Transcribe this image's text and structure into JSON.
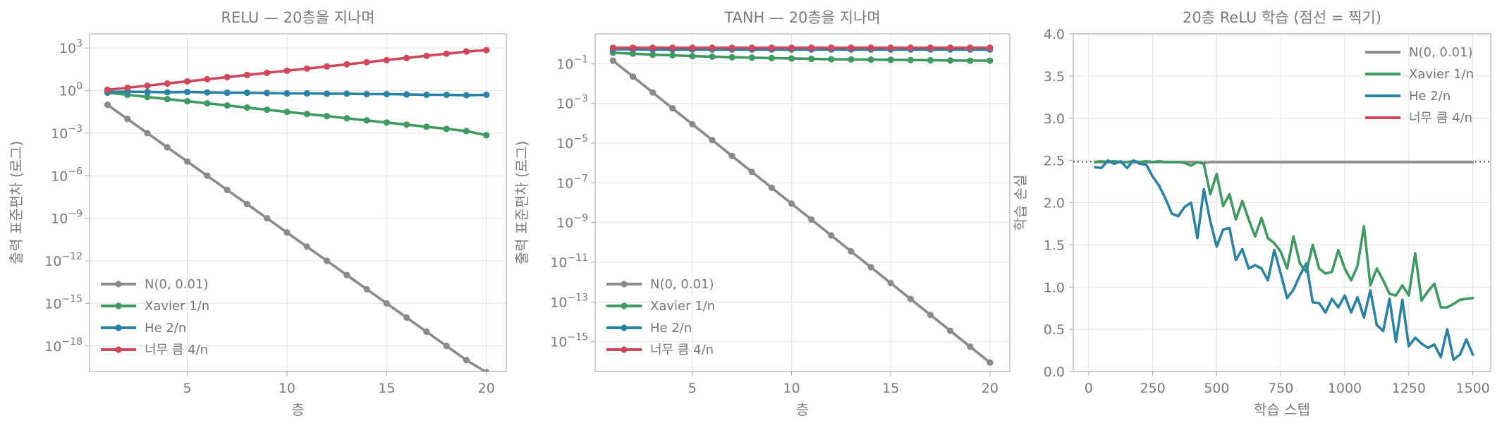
{
  "colors": {
    "n001": "#8a8a8a",
    "xavier": "#3f9a62",
    "he": "#2a82a4",
    "big": "#d0465a",
    "grid": "#e6e6e6",
    "spine": "#b5b5b5",
    "text": "#777777"
  },
  "legend": {
    "n001": "N(0, 0.01)",
    "xavier": "Xavier  1/n",
    "he": "He  2/n",
    "big": "너무 큼  4/n"
  },
  "chart_data": [
    {
      "type": "line",
      "title": "RELU — 20층을 지나며",
      "xlabel": "층",
      "ylabel": "출력 표준편차 (로그)",
      "yscale": "log",
      "xlim": [
        0.1,
        21
      ],
      "ylim_log10": [
        -19.8,
        4.0
      ],
      "xticks": [
        5,
        10,
        15,
        20
      ],
      "ytick_exponents": [
        3,
        0,
        -3,
        -6,
        -9,
        -12,
        -15,
        -18
      ],
      "grid": true,
      "legend_position": "lower-left",
      "series": [
        {
          "name": "N(0, 0.01)",
          "key": "n001",
          "x": [
            1,
            2,
            3,
            4,
            5,
            6,
            7,
            8,
            9,
            10,
            11,
            12,
            13,
            14,
            15,
            16,
            17,
            18,
            19,
            20
          ],
          "log10_y": [
            -1.0,
            -2.0,
            -3.0,
            -4.0,
            -5.0,
            -6.0,
            -7.0,
            -8.0,
            -9.0,
            -10.0,
            -11.0,
            -12.0,
            -13.0,
            -14.0,
            -15.0,
            -16.0,
            -17.0,
            -18.0,
            -19.0,
            -19.85
          ]
        },
        {
          "name": "Xavier  1/n",
          "key": "xavier",
          "x": [
            1,
            2,
            3,
            4,
            5,
            6,
            7,
            8,
            9,
            10,
            11,
            12,
            13,
            14,
            15,
            16,
            17,
            18,
            19,
            20
          ],
          "log10_y": [
            -0.15,
            -0.3,
            -0.45,
            -0.6,
            -0.75,
            -0.9,
            -1.05,
            -1.2,
            -1.35,
            -1.5,
            -1.65,
            -1.8,
            -1.95,
            -2.1,
            -2.25,
            -2.4,
            -2.55,
            -2.7,
            -2.85,
            -3.15
          ]
        },
        {
          "name": "He  2/n",
          "key": "he",
          "x": [
            1,
            2,
            3,
            4,
            5,
            6,
            7,
            8,
            9,
            10,
            11,
            12,
            13,
            14,
            15,
            16,
            17,
            18,
            19,
            20
          ],
          "log10_y": [
            -0.1,
            -0.08,
            -0.1,
            -0.12,
            -0.1,
            -0.13,
            -0.15,
            -0.15,
            -0.17,
            -0.2,
            -0.2,
            -0.22,
            -0.22,
            -0.25,
            -0.25,
            -0.27,
            -0.3,
            -0.3,
            -0.33,
            -0.3
          ]
        },
        {
          "name": "너무 큼  4/n",
          "key": "big",
          "x": [
            1,
            2,
            3,
            4,
            5,
            6,
            7,
            8,
            9,
            10,
            11,
            12,
            13,
            14,
            15,
            16,
            17,
            18,
            19,
            20
          ],
          "log10_y": [
            0.05,
            0.2,
            0.35,
            0.5,
            0.65,
            0.8,
            0.95,
            1.1,
            1.25,
            1.4,
            1.55,
            1.7,
            1.85,
            2.0,
            2.15,
            2.3,
            2.45,
            2.6,
            2.75,
            2.85
          ]
        }
      ]
    },
    {
      "type": "line",
      "title": "TANH — 20층을 지나며",
      "xlabel": "층",
      "ylabel": "출력 표준편차 (로그)",
      "yscale": "log",
      "xlim": [
        0.1,
        21
      ],
      "ylim_log10": [
        -16.5,
        0.5
      ],
      "xticks": [
        5,
        10,
        15,
        20
      ],
      "ytick_exponents": [
        -1,
        -3,
        -5,
        -7,
        -9,
        -11,
        -13,
        -15
      ],
      "grid": true,
      "legend_position": "lower-left",
      "series": [
        {
          "name": "N(0, 0.01)",
          "key": "n001",
          "x": [
            1,
            2,
            3,
            4,
            5,
            6,
            7,
            8,
            9,
            10,
            11,
            12,
            13,
            14,
            15,
            16,
            17,
            18,
            19,
            20
          ],
          "log10_y": [
            -0.85,
            -1.65,
            -2.45,
            -3.25,
            -4.05,
            -4.85,
            -5.65,
            -6.45,
            -7.25,
            -8.05,
            -8.85,
            -9.65,
            -10.45,
            -11.25,
            -12.05,
            -12.85,
            -13.65,
            -14.45,
            -15.25,
            -16.05
          ]
        },
        {
          "name": "Xavier  1/n",
          "key": "xavier",
          "x": [
            1,
            2,
            3,
            4,
            5,
            6,
            7,
            8,
            9,
            10,
            11,
            12,
            13,
            14,
            15,
            16,
            17,
            18,
            19,
            20
          ],
          "log10_y": [
            -0.45,
            -0.5,
            -0.55,
            -0.58,
            -0.62,
            -0.65,
            -0.68,
            -0.7,
            -0.72,
            -0.74,
            -0.76,
            -0.78,
            -0.79,
            -0.8,
            -0.81,
            -0.82,
            -0.83,
            -0.84,
            -0.85,
            -0.85
          ]
        },
        {
          "name": "He  2/n",
          "key": "he",
          "x": [
            1,
            2,
            3,
            4,
            5,
            6,
            7,
            8,
            9,
            10,
            11,
            12,
            13,
            14,
            15,
            16,
            17,
            18,
            19,
            20
          ],
          "log10_y": [
            -0.28,
            -0.28,
            -0.29,
            -0.29,
            -0.29,
            -0.29,
            -0.29,
            -0.29,
            -0.29,
            -0.29,
            -0.29,
            -0.29,
            -0.29,
            -0.29,
            -0.29,
            -0.29,
            -0.29,
            -0.29,
            -0.29,
            -0.29
          ]
        },
        {
          "name": "너무 큼  4/n",
          "key": "big",
          "x": [
            1,
            2,
            3,
            4,
            5,
            6,
            7,
            8,
            9,
            10,
            11,
            12,
            13,
            14,
            15,
            16,
            17,
            18,
            19,
            20
          ],
          "log10_y": [
            -0.2,
            -0.2,
            -0.2,
            -0.2,
            -0.2,
            -0.2,
            -0.2,
            -0.2,
            -0.2,
            -0.2,
            -0.2,
            -0.2,
            -0.2,
            -0.2,
            -0.2,
            -0.2,
            -0.2,
            -0.2,
            -0.2,
            -0.2
          ]
        }
      ]
    },
    {
      "type": "line",
      "title": "20층 ReLU 학습 (점선 = 찍기)",
      "xlabel": "학습 스텝",
      "ylabel": "학습 손실",
      "yscale": "linear",
      "xlim": [
        -60,
        1570
      ],
      "ylim": [
        0,
        4.0
      ],
      "xticks": [
        0,
        250,
        500,
        750,
        1000,
        1250,
        1500
      ],
      "yticks": [
        0.0,
        0.5,
        1.0,
        1.5,
        2.0,
        2.5,
        3.0,
        3.5,
        4.0
      ],
      "ytick_labels": [
        "0.0",
        "0.5",
        "1.0",
        "1.5",
        "2.0",
        "2.5",
        "3.0",
        "3.5",
        "4.0"
      ],
      "guess_line": 2.485,
      "grid": true,
      "legend_position": "top-right",
      "series": [
        {
          "name": "N(0, 0.01)",
          "key": "n001",
          "x": [
            25,
            50,
            75,
            100,
            125,
            150,
            175,
            200,
            225,
            250,
            275,
            300,
            325,
            350,
            375,
            400,
            425,
            450,
            475,
            500,
            525,
            550,
            575,
            600,
            625,
            650,
            675,
            700,
            725,
            750,
            775,
            800,
            825,
            850,
            875,
            900,
            925,
            950,
            975,
            1000,
            1025,
            1050,
            1075,
            1100,
            1125,
            1150,
            1175,
            1200,
            1225,
            1250,
            1275,
            1300,
            1325,
            1350,
            1375,
            1400,
            1425,
            1450,
            1475,
            1500
          ],
          "y": [
            2.48,
            2.48,
            2.48,
            2.48,
            2.48,
            2.48,
            2.48,
            2.48,
            2.48,
            2.48,
            2.48,
            2.48,
            2.48,
            2.48,
            2.48,
            2.48,
            2.48,
            2.47,
            2.48,
            2.48,
            2.48,
            2.48,
            2.48,
            2.48,
            2.48,
            2.48,
            2.48,
            2.48,
            2.48,
            2.48,
            2.48,
            2.48,
            2.48,
            2.48,
            2.48,
            2.48,
            2.48,
            2.48,
            2.48,
            2.48,
            2.48,
            2.48,
            2.48,
            2.48,
            2.48,
            2.48,
            2.48,
            2.48,
            2.48,
            2.48,
            2.48,
            2.48,
            2.48,
            2.48,
            2.48,
            2.48,
            2.48,
            2.48,
            2.48,
            2.48
          ]
        },
        {
          "name": "Xavier  1/n",
          "key": "xavier",
          "x": [
            25,
            50,
            75,
            100,
            125,
            150,
            175,
            200,
            225,
            250,
            275,
            300,
            325,
            350,
            375,
            400,
            425,
            450,
            475,
            500,
            525,
            550,
            575,
            600,
            625,
            650,
            675,
            700,
            725,
            750,
            775,
            800,
            825,
            850,
            875,
            900,
            925,
            950,
            975,
            1000,
            1025,
            1050,
            1075,
            1100,
            1125,
            1150,
            1175,
            1200,
            1225,
            1250,
            1275,
            1300,
            1325,
            1350,
            1375,
            1400,
            1425,
            1450,
            1475,
            1500
          ],
          "y": [
            2.48,
            2.49,
            2.48,
            2.49,
            2.48,
            2.48,
            2.49,
            2.48,
            2.49,
            2.48,
            2.49,
            2.48,
            2.48,
            2.48,
            2.47,
            2.44,
            2.48,
            2.46,
            2.1,
            2.34,
            1.96,
            2.1,
            1.8,
            2.02,
            1.8,
            1.6,
            1.82,
            1.58,
            1.52,
            1.42,
            1.22,
            1.6,
            1.28,
            1.18,
            1.5,
            1.22,
            1.16,
            1.18,
            1.44,
            1.22,
            1.08,
            1.25,
            1.72,
            1.02,
            1.22,
            1.08,
            0.92,
            0.9,
            1.02,
            0.9,
            1.4,
            0.84,
            0.95,
            1.04,
            0.76,
            0.76,
            0.8,
            0.85,
            0.86,
            0.87
          ]
        },
        {
          "name": "He  2/n",
          "key": "he",
          "x": [
            25,
            50,
            75,
            100,
            125,
            150,
            175,
            200,
            225,
            250,
            275,
            300,
            325,
            350,
            375,
            400,
            425,
            450,
            475,
            500,
            525,
            550,
            575,
            600,
            625,
            650,
            675,
            700,
            725,
            750,
            775,
            800,
            825,
            850,
            875,
            900,
            925,
            950,
            975,
            1000,
            1025,
            1050,
            1075,
            1100,
            1125,
            1150,
            1175,
            1200,
            1225,
            1250,
            1275,
            1300,
            1325,
            1350,
            1375,
            1400,
            1425,
            1450,
            1475,
            1500
          ],
          "y": [
            2.42,
            2.41,
            2.5,
            2.46,
            2.49,
            2.41,
            2.5,
            2.46,
            2.45,
            2.31,
            2.2,
            2.05,
            1.87,
            1.84,
            1.95,
            2.0,
            1.58,
            2.16,
            1.78,
            1.48,
            1.68,
            1.7,
            1.32,
            1.45,
            1.22,
            1.26,
            1.22,
            1.08,
            1.44,
            1.16,
            0.87,
            0.97,
            1.14,
            1.28,
            0.82,
            0.81,
            0.7,
            0.86,
            0.76,
            0.9,
            0.7,
            0.88,
            0.64,
            0.96,
            0.55,
            0.48,
            0.86,
            0.35,
            0.85,
            0.3,
            0.4,
            0.33,
            0.28,
            0.32,
            0.17,
            0.5,
            0.14,
            0.2,
            0.38,
            0.2
          ]
        }
      ]
    }
  ]
}
